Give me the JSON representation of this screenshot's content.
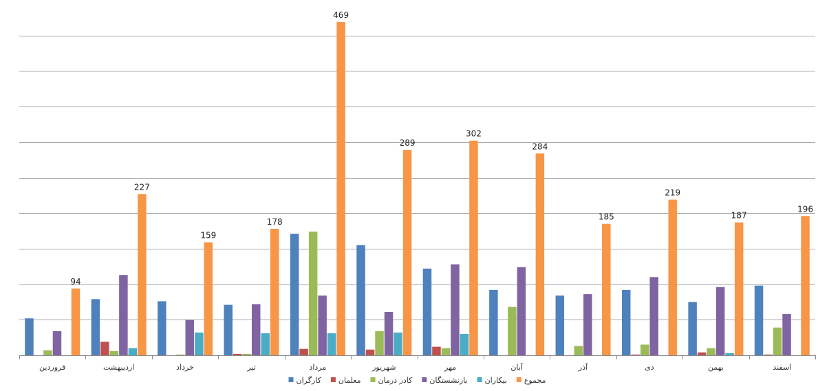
{
  "chart_data": {
    "type": "bar",
    "title": "",
    "xlabel": "",
    "ylabel": "",
    "ylim": [
      0,
      500
    ],
    "grid": true,
    "legend_position": "bottom",
    "categories": [
      "فروردین",
      "اردیبهشت",
      "خرداد",
      "تیر",
      "مرداد",
      "شهریور",
      "مهر",
      "آبان",
      "آذر",
      "دی",
      "بهمن",
      "اسفند"
    ],
    "series": [
      {
        "name": "کارگران",
        "color": "#4F81BD",
        "values": [
          52,
          79,
          76,
          71,
          171,
          155,
          122,
          92,
          84,
          92,
          75,
          98
        ]
      },
      {
        "name": "معلمان",
        "color": "#C0504D",
        "values": [
          0,
          19,
          0,
          2,
          9,
          8,
          12,
          0,
          0,
          1,
          4,
          1
        ]
      },
      {
        "name": "کادر درمان",
        "color": "#9BBB59",
        "values": [
          7,
          6,
          1,
          2,
          174,
          34,
          10,
          68,
          13,
          15,
          10,
          39
        ]
      },
      {
        "name": "بازنشستگان",
        "color": "#8064A2",
        "values": [
          34,
          113,
          50,
          72,
          84,
          61,
          128,
          124,
          86,
          110,
          96,
          58
        ]
      },
      {
        "name": "بیکاران",
        "color": "#4BACC6",
        "values": [
          0,
          10,
          32,
          31,
          31,
          32,
          30,
          0,
          0,
          0,
          3,
          0
        ]
      },
      {
        "name": "مجموع",
        "color": "#F79646",
        "values": [
          94,
          227,
          159,
          178,
          469,
          289,
          302,
          284,
          185,
          219,
          187,
          196
        ],
        "show_labels": true
      }
    ]
  }
}
